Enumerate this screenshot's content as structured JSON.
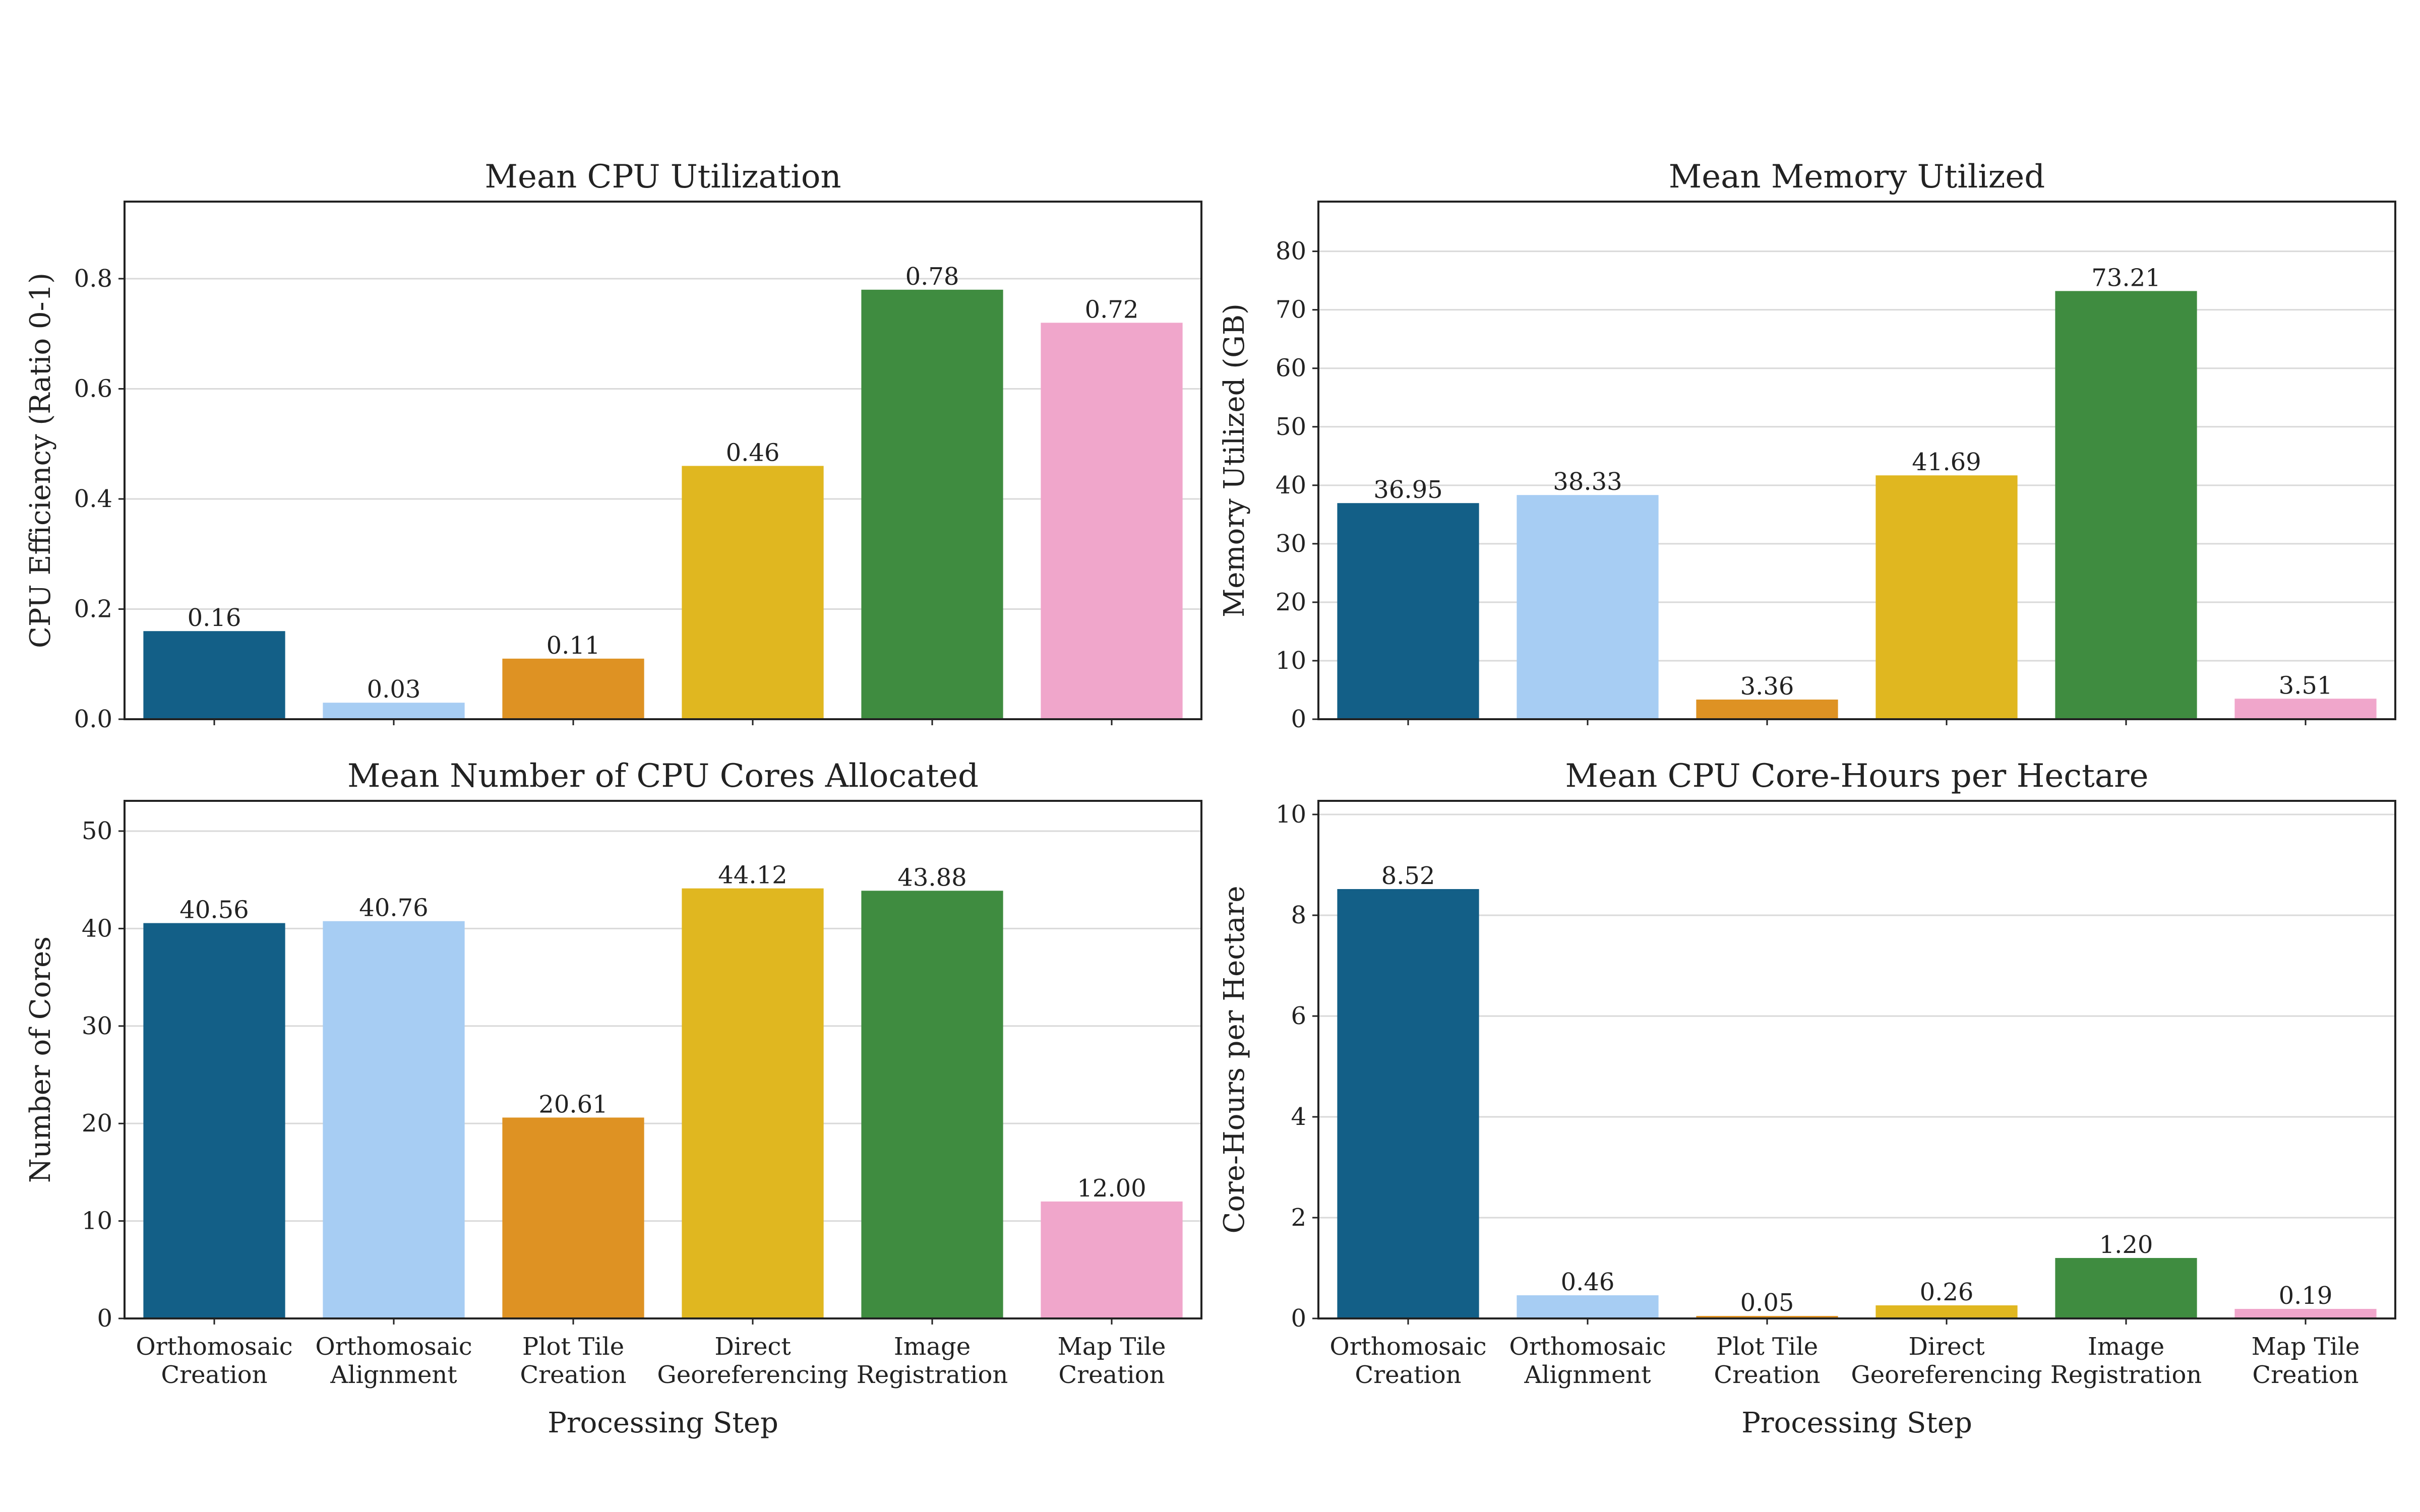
{
  "chart_data": [
    {
      "type": "bar",
      "title": "Mean CPU Utilization",
      "xlabel": "",
      "ylabel": "CPU Efficiency (Ratio 0-1)",
      "categories": [
        "Orthomosaic\nCreation",
        "Orthomosaic\nAlignment",
        "Plot Tile\nCreation",
        "Direct\nGeoreferencing",
        "Image\nRegistration",
        "Map Tile\nCreation"
      ],
      "values": [
        0.16,
        0.03,
        0.11,
        0.46,
        0.78,
        0.72
      ],
      "value_labels": [
        "0.16",
        "0.03",
        "0.11",
        "0.46",
        "0.78",
        "0.72"
      ],
      "ylim": [
        0,
        0.94
      ],
      "yticks": [
        0,
        0.2,
        0.4,
        0.6,
        0.8
      ],
      "ytick_labels": [
        "0.0",
        "0.2",
        "0.4",
        "0.6",
        "0.8"
      ],
      "show_xtick_labels": false,
      "grid": "y"
    },
    {
      "type": "bar",
      "title": "Mean Memory Utilized",
      "xlabel": "",
      "ylabel": "Memory Utilized (GB)",
      "categories": [
        "Orthomosaic\nCreation",
        "Orthomosaic\nAlignment",
        "Plot Tile\nCreation",
        "Direct\nGeoreferencing",
        "Image\nRegistration",
        "Map Tile\nCreation"
      ],
      "values": [
        36.95,
        38.33,
        3.36,
        41.69,
        73.21,
        3.51
      ],
      "value_labels": [
        "36.95",
        "38.33",
        "3.36",
        "41.69",
        "73.21",
        "3.51"
      ],
      "ylim": [
        0,
        88.5
      ],
      "yticks": [
        0,
        10,
        20,
        30,
        40,
        50,
        60,
        70,
        80
      ],
      "ytick_labels": [
        "0",
        "10",
        "20",
        "30",
        "40",
        "50",
        "60",
        "70",
        "80"
      ],
      "show_xtick_labels": false,
      "grid": "y"
    },
    {
      "type": "bar",
      "title": "Mean Number of CPU Cores Allocated",
      "xlabel": "Processing Step",
      "ylabel": "Number of Cores",
      "categories": [
        "Orthomosaic\nCreation",
        "Orthomosaic\nAlignment",
        "Plot Tile\nCreation",
        "Direct\nGeoreferencing",
        "Image\nRegistration",
        "Map Tile\nCreation"
      ],
      "values": [
        40.56,
        40.76,
        20.61,
        44.12,
        43.88,
        12.0
      ],
      "value_labels": [
        "40.56",
        "40.76",
        "20.61",
        "44.12",
        "43.88",
        "12.00"
      ],
      "ylim": [
        0,
        53.1
      ],
      "yticks": [
        0,
        10,
        20,
        30,
        40,
        50
      ],
      "ytick_labels": [
        "0",
        "10",
        "20",
        "30",
        "40",
        "50"
      ],
      "show_xtick_labels": true,
      "grid": "y"
    },
    {
      "type": "bar",
      "title": "Mean CPU Core-Hours per Hectare",
      "xlabel": "Processing Step",
      "ylabel": "Core-Hours per Hectare",
      "categories": [
        "Orthomosaic\nCreation",
        "Orthomosaic\nAlignment",
        "Plot Tile\nCreation",
        "Direct\nGeoreferencing",
        "Image\nRegistration",
        "Map Tile\nCreation"
      ],
      "values": [
        8.52,
        0.46,
        0.05,
        0.26,
        1.2,
        0.19
      ],
      "value_labels": [
        "8.52",
        "0.46",
        "0.05",
        "0.26",
        "1.20",
        "0.19"
      ],
      "ylim": [
        0,
        10.27
      ],
      "yticks": [
        0,
        2,
        4,
        6,
        8,
        10
      ],
      "ytick_labels": [
        "0",
        "2",
        "4",
        "6",
        "8",
        "10"
      ],
      "show_xtick_labels": true,
      "grid": "y"
    }
  ],
  "colors": [
    "#135f87",
    "#a7cdf3",
    "#de9223",
    "#e0b720",
    "#3f8c40",
    "#f0a6cb"
  ]
}
